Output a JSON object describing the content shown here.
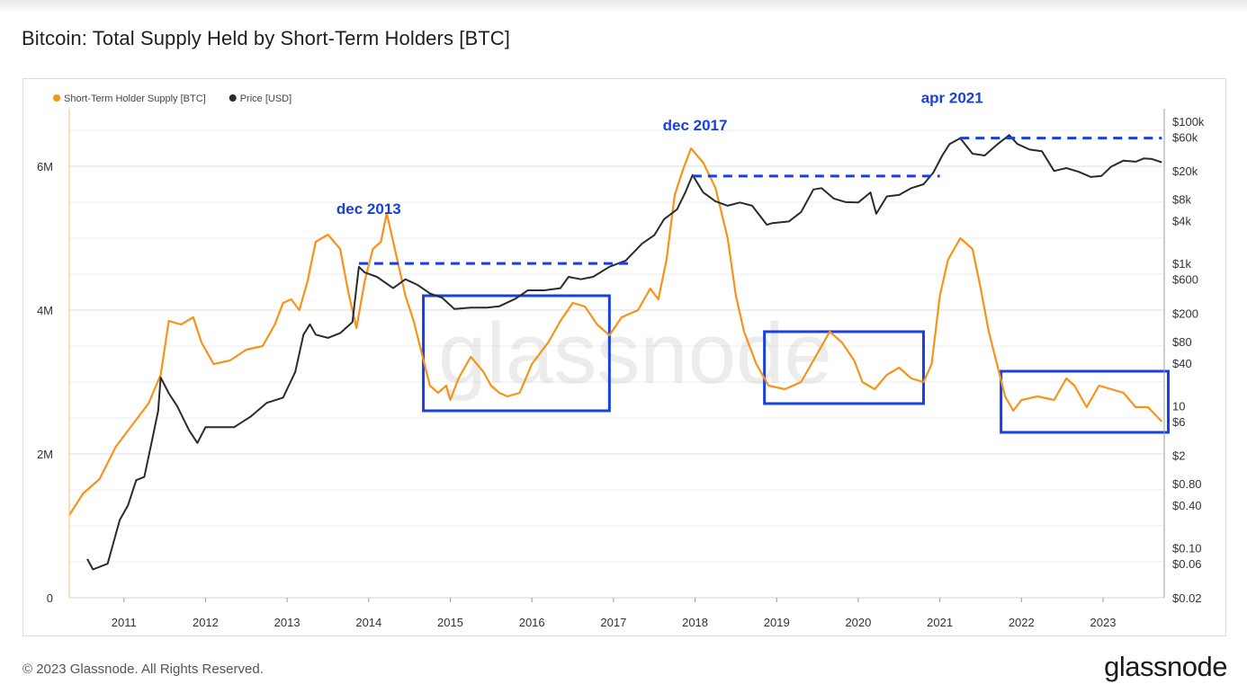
{
  "page": {
    "title": "Bitcoin: Total Supply Held by Short-Term Holders [BTC]",
    "copyright": "© 2023 Glassnode. All Rights Reserved.",
    "logo": "glassnode",
    "watermark": "glassnode"
  },
  "chart_data": {
    "type": "line",
    "title": "Bitcoin: Total Supply Held by Short-Term Holders [BTC]",
    "legend_position": "top-left",
    "grid": true,
    "x_ticks": [
      "2011",
      "2012",
      "2013",
      "2014",
      "2015",
      "2016",
      "2017",
      "2018",
      "2019",
      "2020",
      "2021",
      "2022",
      "2023"
    ],
    "xlim": [
      2010.33,
      2023.75
    ],
    "left_axis": {
      "ylim": [
        0,
        6800000
      ],
      "ticks": [
        {
          "value": 0,
          "label": "0"
        },
        {
          "value": 2000000,
          "label": "2M"
        },
        {
          "value": 4000000,
          "label": "4M"
        },
        {
          "value": 6000000,
          "label": "6M"
        }
      ]
    },
    "right_axis": {
      "scale": "log",
      "ylim": [
        0.02,
        150000
      ],
      "ticks": [
        {
          "value": 100000,
          "label": "$100k"
        },
        {
          "value": 60000,
          "label": "$60k"
        },
        {
          "value": 20000,
          "label": "$20k"
        },
        {
          "value": 8000,
          "label": "$8k"
        },
        {
          "value": 4000,
          "label": "$4k"
        },
        {
          "value": 1000,
          "label": "$1k"
        },
        {
          "value": 600,
          "label": "$600"
        },
        {
          "value": 200,
          "label": "$200"
        },
        {
          "value": 80,
          "label": "$80"
        },
        {
          "value": 40,
          "label": "$40"
        },
        {
          "value": 10,
          "label": "10"
        },
        {
          "value": 6,
          "label": "$6"
        },
        {
          "value": 2,
          "label": "$2"
        },
        {
          "value": 0.8,
          "label": "$0.80"
        },
        {
          "value": 0.4,
          "label": "$0.40"
        },
        {
          "value": 0.1,
          "label": "$0.10"
        },
        {
          "value": 0.06,
          "label": "$0.06"
        },
        {
          "value": 0.02,
          "label": "$0.02"
        }
      ]
    },
    "series": [
      {
        "name": "Short-Term Holder Supply [BTC]",
        "axis": "left",
        "color": "#f7931a",
        "points": [
          [
            2010.33,
            1150000
          ],
          [
            2010.5,
            1450000
          ],
          [
            2010.7,
            1650000
          ],
          [
            2010.9,
            2100000
          ],
          [
            2011.1,
            2400000
          ],
          [
            2011.3,
            2700000
          ],
          [
            2011.45,
            3100000
          ],
          [
            2011.55,
            3850000
          ],
          [
            2011.7,
            3800000
          ],
          [
            2011.85,
            3900000
          ],
          [
            2011.95,
            3550000
          ],
          [
            2012.1,
            3250000
          ],
          [
            2012.3,
            3300000
          ],
          [
            2012.5,
            3450000
          ],
          [
            2012.7,
            3500000
          ],
          [
            2012.85,
            3800000
          ],
          [
            2012.95,
            4100000
          ],
          [
            2013.05,
            4150000
          ],
          [
            2013.15,
            4000000
          ],
          [
            2013.25,
            4400000
          ],
          [
            2013.35,
            4950000
          ],
          [
            2013.5,
            5050000
          ],
          [
            2013.65,
            4850000
          ],
          [
            2013.75,
            4250000
          ],
          [
            2013.85,
            3750000
          ],
          [
            2013.95,
            4400000
          ],
          [
            2014.05,
            4850000
          ],
          [
            2014.15,
            4950000
          ],
          [
            2014.22,
            5350000
          ],
          [
            2014.3,
            4950000
          ],
          [
            2014.45,
            4200000
          ],
          [
            2014.55,
            3850000
          ],
          [
            2014.65,
            3400000
          ],
          [
            2014.75,
            2950000
          ],
          [
            2014.85,
            2850000
          ],
          [
            2014.95,
            2950000
          ],
          [
            2015.0,
            2750000
          ],
          [
            2015.1,
            3050000
          ],
          [
            2015.25,
            3350000
          ],
          [
            2015.4,
            3150000
          ],
          [
            2015.5,
            2950000
          ],
          [
            2015.6,
            2850000
          ],
          [
            2015.7,
            2800000
          ],
          [
            2015.85,
            2850000
          ],
          [
            2016.0,
            3250000
          ],
          [
            2016.2,
            3550000
          ],
          [
            2016.35,
            3850000
          ],
          [
            2016.5,
            4100000
          ],
          [
            2016.65,
            4050000
          ],
          [
            2016.8,
            3800000
          ],
          [
            2016.95,
            3650000
          ],
          [
            2017.1,
            3900000
          ],
          [
            2017.3,
            4000000
          ],
          [
            2017.45,
            4300000
          ],
          [
            2017.55,
            4150000
          ],
          [
            2017.65,
            4700000
          ],
          [
            2017.75,
            5600000
          ],
          [
            2017.85,
            5950000
          ],
          [
            2017.95,
            6250000
          ],
          [
            2018.1,
            6050000
          ],
          [
            2018.25,
            5700000
          ],
          [
            2018.4,
            5000000
          ],
          [
            2018.5,
            4200000
          ],
          [
            2018.6,
            3700000
          ],
          [
            2018.75,
            3250000
          ],
          [
            2018.9,
            2950000
          ],
          [
            2019.1,
            2900000
          ],
          [
            2019.3,
            3000000
          ],
          [
            2019.5,
            3400000
          ],
          [
            2019.65,
            3700000
          ],
          [
            2019.8,
            3550000
          ],
          [
            2019.95,
            3300000
          ],
          [
            2020.05,
            3000000
          ],
          [
            2020.2,
            2900000
          ],
          [
            2020.35,
            3100000
          ],
          [
            2020.5,
            3200000
          ],
          [
            2020.65,
            3050000
          ],
          [
            2020.8,
            3000000
          ],
          [
            2020.9,
            3250000
          ],
          [
            2021.0,
            4200000
          ],
          [
            2021.1,
            4700000
          ],
          [
            2021.25,
            5000000
          ],
          [
            2021.4,
            4850000
          ],
          [
            2021.5,
            4300000
          ],
          [
            2021.6,
            3700000
          ],
          [
            2021.7,
            3250000
          ],
          [
            2021.8,
            2800000
          ],
          [
            2021.9,
            2600000
          ],
          [
            2022.0,
            2750000
          ],
          [
            2022.2,
            2800000
          ],
          [
            2022.4,
            2750000
          ],
          [
            2022.55,
            3050000
          ],
          [
            2022.65,
            2950000
          ],
          [
            2022.8,
            2650000
          ],
          [
            2022.95,
            2950000
          ],
          [
            2023.1,
            2900000
          ],
          [
            2023.25,
            2850000
          ],
          [
            2023.4,
            2650000
          ],
          [
            2023.55,
            2650000
          ],
          [
            2023.72,
            2450000
          ]
        ]
      },
      {
        "name": "Price [USD]",
        "axis": "right",
        "color": "#2b2b2b",
        "points": [
          [
            2010.55,
            0.07
          ],
          [
            2010.62,
            0.05
          ],
          [
            2010.8,
            0.06
          ],
          [
            2010.95,
            0.25
          ],
          [
            2011.05,
            0.4
          ],
          [
            2011.15,
            0.9
          ],
          [
            2011.25,
            1.0
          ],
          [
            2011.35,
            3.5
          ],
          [
            2011.42,
            8.5
          ],
          [
            2011.45,
            25
          ],
          [
            2011.55,
            15
          ],
          [
            2011.65,
            10
          ],
          [
            2011.8,
            4.5
          ],
          [
            2011.9,
            3.0
          ],
          [
            2012.0,
            5.0
          ],
          [
            2012.15,
            5.0
          ],
          [
            2012.35,
            5.0
          ],
          [
            2012.55,
            7.0
          ],
          [
            2012.75,
            11
          ],
          [
            2012.95,
            13
          ],
          [
            2013.1,
            30
          ],
          [
            2013.2,
            100
          ],
          [
            2013.28,
            140
          ],
          [
            2013.35,
            100
          ],
          [
            2013.5,
            90
          ],
          [
            2013.65,
            105
          ],
          [
            2013.8,
            150
          ],
          [
            2013.88,
            900
          ],
          [
            2013.95,
            750
          ],
          [
            2014.1,
            650
          ],
          [
            2014.3,
            450
          ],
          [
            2014.45,
            600
          ],
          [
            2014.6,
            500
          ],
          [
            2014.75,
            380
          ],
          [
            2014.9,
            330
          ],
          [
            2015.05,
            230
          ],
          [
            2015.25,
            240
          ],
          [
            2015.45,
            240
          ],
          [
            2015.6,
            250
          ],
          [
            2015.8,
            320
          ],
          [
            2015.95,
            420
          ],
          [
            2016.15,
            420
          ],
          [
            2016.35,
            450
          ],
          [
            2016.45,
            650
          ],
          [
            2016.6,
            600
          ],
          [
            2016.75,
            650
          ],
          [
            2016.95,
            900
          ],
          [
            2017.15,
            1100
          ],
          [
            2017.35,
            1900
          ],
          [
            2017.5,
            2500
          ],
          [
            2017.62,
            4200
          ],
          [
            2017.78,
            5800
          ],
          [
            2017.88,
            10000
          ],
          [
            2017.97,
            17500
          ],
          [
            2018.1,
            10000
          ],
          [
            2018.25,
            7500
          ],
          [
            2018.4,
            6500
          ],
          [
            2018.55,
            7200
          ],
          [
            2018.7,
            6500
          ],
          [
            2018.88,
            3500
          ],
          [
            2018.95,
            3700
          ],
          [
            2019.15,
            3900
          ],
          [
            2019.3,
            5300
          ],
          [
            2019.45,
            11000
          ],
          [
            2019.55,
            11500
          ],
          [
            2019.7,
            8200
          ],
          [
            2019.85,
            7300
          ],
          [
            2020.0,
            7200
          ],
          [
            2020.15,
            10000
          ],
          [
            2020.22,
            5000
          ],
          [
            2020.35,
            8800
          ],
          [
            2020.5,
            9200
          ],
          [
            2020.65,
            11500
          ],
          [
            2020.8,
            13000
          ],
          [
            2020.92,
            19000
          ],
          [
            2021.03,
            33000
          ],
          [
            2021.12,
            48000
          ],
          [
            2021.25,
            58000
          ],
          [
            2021.4,
            35000
          ],
          [
            2021.55,
            33000
          ],
          [
            2021.7,
            47000
          ],
          [
            2021.85,
            64000
          ],
          [
            2021.95,
            48000
          ],
          [
            2022.1,
            40000
          ],
          [
            2022.25,
            38000
          ],
          [
            2022.4,
            20000
          ],
          [
            2022.55,
            22000
          ],
          [
            2022.7,
            19500
          ],
          [
            2022.85,
            16500
          ],
          [
            2022.98,
            17000
          ],
          [
            2023.1,
            23000
          ],
          [
            2023.25,
            28000
          ],
          [
            2023.4,
            27000
          ],
          [
            2023.5,
            30000
          ],
          [
            2023.6,
            29500
          ],
          [
            2023.72,
            26500
          ]
        ]
      }
    ],
    "annotations": [
      {
        "label": "dec 2013",
        "x": 2014.0,
        "y_price": 5000
      },
      {
        "label": "dec 2017",
        "x": 2018.0,
        "y_price": 75000
      },
      {
        "label": "apr 2021",
        "x": 2021.15,
        "y_price": 180000
      }
    ],
    "reference_lines": [
      {
        "x0": 2013.88,
        "x1": 2017.25,
        "y_price": 1000
      },
      {
        "x0": 2017.97,
        "x1": 2021.0,
        "y_price": 17000
      },
      {
        "x0": 2021.25,
        "x1": 2023.72,
        "y_price": 58000
      }
    ],
    "highlight_boxes": [
      {
        "x0": 2014.67,
        "x1": 2016.95,
        "y0_supply": 2600000,
        "y1_supply": 4200000
      },
      {
        "x0": 2018.85,
        "x1": 2020.8,
        "y0_supply": 2700000,
        "y1_supply": 3700000
      },
      {
        "x0": 2021.75,
        "x1": 2023.8,
        "y0_supply": 2300000,
        "y1_supply": 3150000
      }
    ]
  },
  "colors": {
    "annotation": "#1a3fe0",
    "grid": "#ececec"
  }
}
